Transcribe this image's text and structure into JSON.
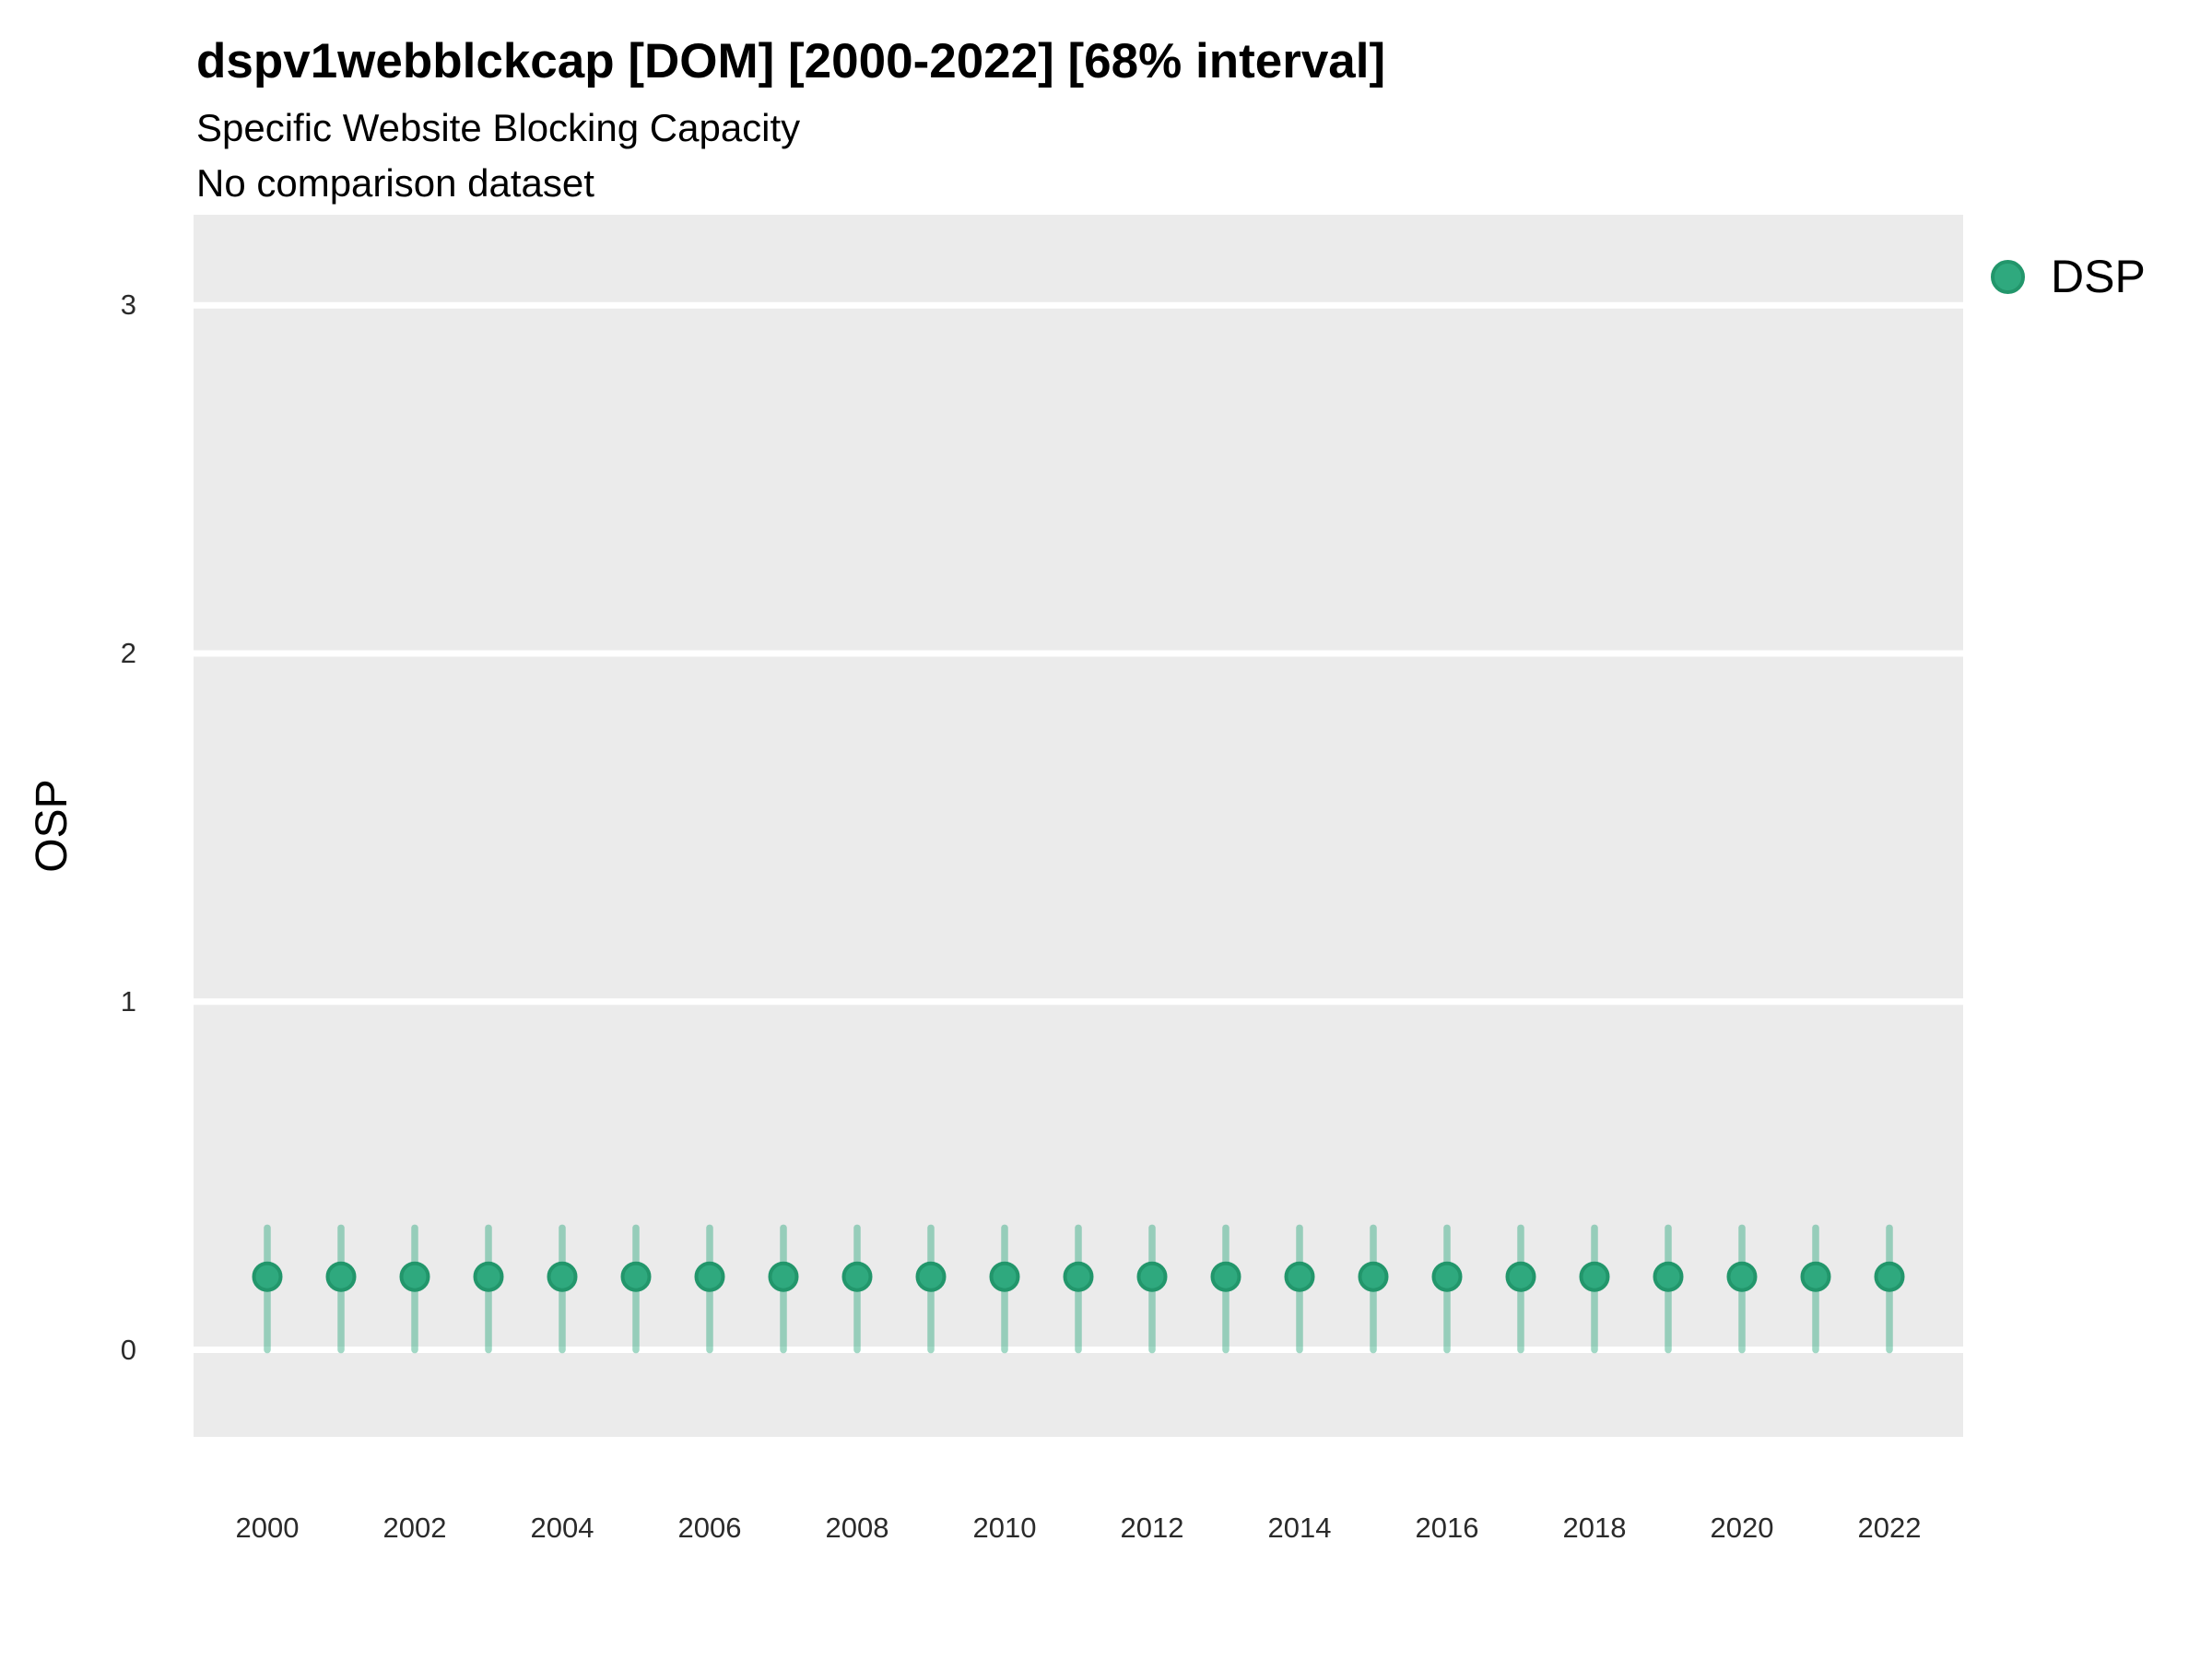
{
  "header": {
    "title": "dspv1webblckcap [DOM] [2000-2022] [68% interval]",
    "subtitle": "Specific Website Blocking Capacity",
    "note": "No comparison dataset"
  },
  "legend": {
    "position": "right-top",
    "items": [
      {
        "label": "DSP",
        "swatch": "circle"
      }
    ]
  },
  "colors": {
    "panel_background": "#EBEBEB",
    "gridline": "#FFFFFF",
    "point_fill": "#2FA97E",
    "point_stroke": "#22966B",
    "interval_bar": "rgba(47,169,126,0.45)",
    "title_text": "#000000",
    "tick_text": "#2B2B2B"
  },
  "chart_data": {
    "type": "scatter",
    "title": "dspv1webblckcap [DOM] [2000-2022] [68% interval]",
    "subtitle": "Specific Website Blocking Capacity",
    "note": "No comparison dataset",
    "xlabel": "",
    "ylabel": "OSP",
    "interval_label": "68% interval",
    "grid": "horizontal-major-only",
    "legend_position": "right",
    "ylim": [
      -0.25,
      3.26
    ],
    "y_ticks": [
      0,
      1,
      2,
      3
    ],
    "x": [
      2000,
      2001,
      2002,
      2003,
      2004,
      2005,
      2006,
      2007,
      2008,
      2009,
      2010,
      2011,
      2012,
      2013,
      2014,
      2015,
      2016,
      2017,
      2018,
      2019,
      2020,
      2021,
      2022
    ],
    "x_tick_labels": [
      "2000",
      "2002",
      "2004",
      "2006",
      "2008",
      "2010",
      "2012",
      "2014",
      "2016",
      "2018",
      "2020",
      "2022"
    ],
    "series": [
      {
        "name": "DSP",
        "values": [
          0.21,
          0.21,
          0.21,
          0.21,
          0.21,
          0.21,
          0.21,
          0.21,
          0.21,
          0.21,
          0.21,
          0.21,
          0.21,
          0.21,
          0.21,
          0.21,
          0.21,
          0.21,
          0.21,
          0.21,
          0.21,
          0.21,
          0.21
        ],
        "interval_low": [
          0.0,
          0.0,
          0.0,
          0.0,
          0.0,
          0.0,
          0.0,
          0.0,
          0.0,
          0.0,
          0.0,
          0.0,
          0.0,
          0.0,
          0.0,
          0.0,
          0.0,
          0.0,
          0.0,
          0.0,
          0.0,
          0.0,
          0.0
        ],
        "interval_high": [
          0.35,
          0.35,
          0.35,
          0.35,
          0.35,
          0.35,
          0.35,
          0.35,
          0.35,
          0.35,
          0.35,
          0.35,
          0.35,
          0.35,
          0.35,
          0.35,
          0.35,
          0.35,
          0.35,
          0.35,
          0.35,
          0.35,
          0.35
        ]
      }
    ]
  }
}
